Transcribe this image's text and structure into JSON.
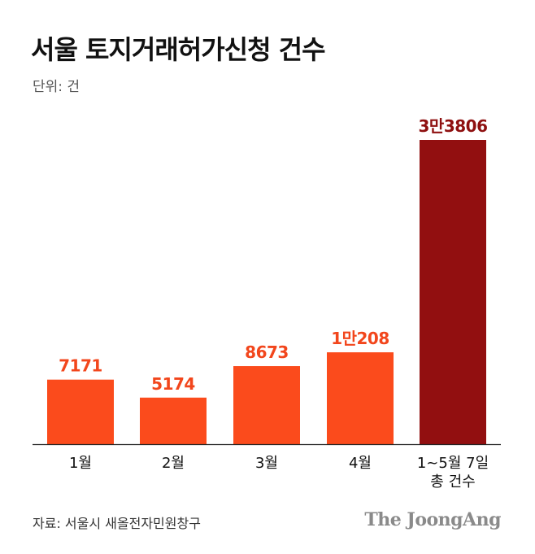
{
  "title": "서울 토지거래허가신청 건수",
  "unit_label": "단위: 건",
  "source": "자료: 서울시 새올전자민원창구",
  "brand": "The JoongAng",
  "chart_data": {
    "type": "bar",
    "categories": [
      "1월",
      "2월",
      "3월",
      "4월",
      "1~5월 7일\n총 건수"
    ],
    "values": [
      7171,
      5174,
      8673,
      10208,
      33806
    ],
    "value_labels": [
      "7171",
      "5174",
      "8673",
      "1만208",
      "3만3806"
    ],
    "colors": [
      "#fb4b1c",
      "#fb4b1c",
      "#fb4b1c",
      "#fb4b1c",
      "#920f10"
    ],
    "label_colors": [
      "#f2461c",
      "#f2461c",
      "#f2461c",
      "#f2461c",
      "#8e1010"
    ],
    "ylim": [
      0,
      33806
    ],
    "grid": false,
    "axis_color": "#222222"
  }
}
